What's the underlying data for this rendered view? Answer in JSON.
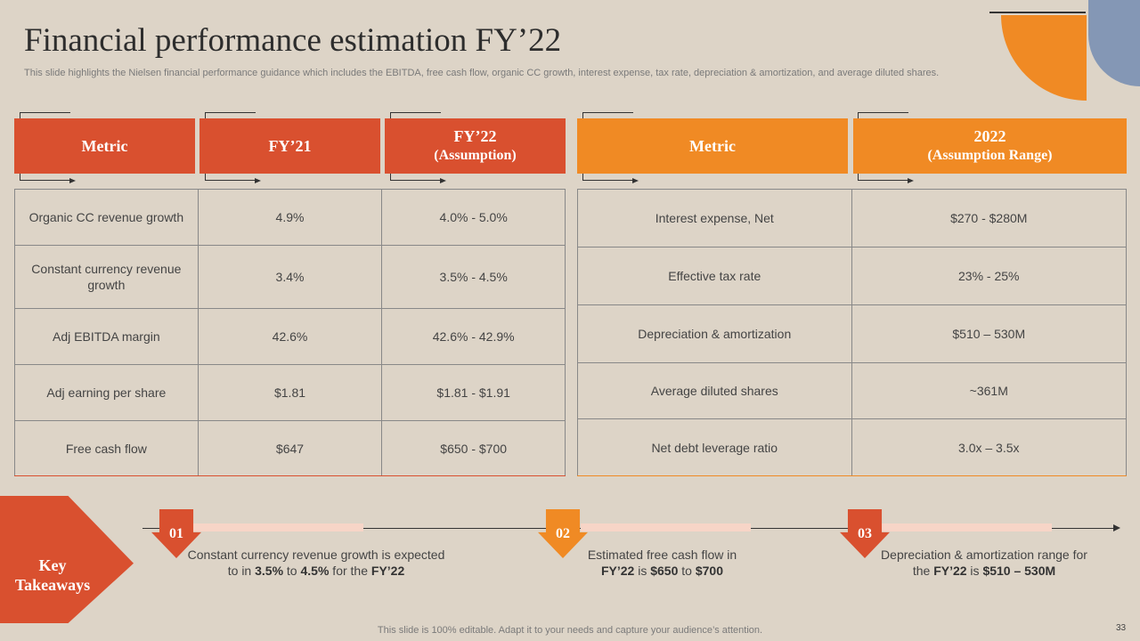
{
  "title": "Financial performance estimation FY’22",
  "subtitle": "This slide highlights the Nielsen financial performance guidance which includes the EBITDA, free cash flow, organic CC growth, interest expense, tax rate, depreciation & amortization, and average diluted shares.",
  "left_table": {
    "headers": [
      "Metric",
      "FY’21",
      "FY’22",
      "(Assumption)"
    ],
    "rows": [
      [
        "Organic CC revenue growth",
        "4.9%",
        "4.0% - 5.0%"
      ],
      [
        "Constant currency revenue growth",
        "3.4%",
        "3.5% - 4.5%"
      ],
      [
        "Adj EBITDA margin",
        "42.6%",
        "42.6% - 42.9%"
      ],
      [
        "Adj earning per share",
        "$1.81",
        "$1.81 - $1.91"
      ],
      [
        "Free cash flow",
        "$647",
        "$650 - $700"
      ]
    ]
  },
  "right_table": {
    "headers": [
      "Metric",
      "2022",
      "(Assumption Range)"
    ],
    "rows": [
      [
        "Interest expense, Net",
        "$270 - $280M"
      ],
      [
        "Effective tax rate",
        "23% - 25%"
      ],
      [
        "Depreciation & amortization",
        "$510 – 530M"
      ],
      [
        "Average diluted shares",
        "~361M"
      ],
      [
        "Net debt leverage ratio",
        "3.0x – 3.5x"
      ]
    ]
  },
  "key_takeaways": {
    "label": "Key Takeaways",
    "items": [
      {
        "num": "01",
        "pre": "Constant currency revenue growth is expected to in ",
        "v1": "3.5%",
        "mid": " to ",
        "v2": "4.5%",
        "mid2": " for the ",
        "v3": "FY’22"
      },
      {
        "num": "02",
        "pre": "Estimated free cash flow in ",
        "v1": "FY’22",
        "mid": " is ",
        "v2": "$650",
        "mid2": " to ",
        "v3": "$700"
      },
      {
        "num": "03",
        "pre": "Depreciation & amortization range for the ",
        "v1": "FY’22",
        "mid": " is ",
        "v2": "$510 – 530M",
        "mid2": "",
        "v3": ""
      }
    ]
  },
  "footer": "This slide is 100% editable. Adapt it to your needs and capture your audience’s attention.",
  "page_number": "33",
  "colors": {
    "red": "#d9502f",
    "orange": "#f08a24",
    "blue": "#8497b5",
    "background": "#ddd4c7"
  }
}
